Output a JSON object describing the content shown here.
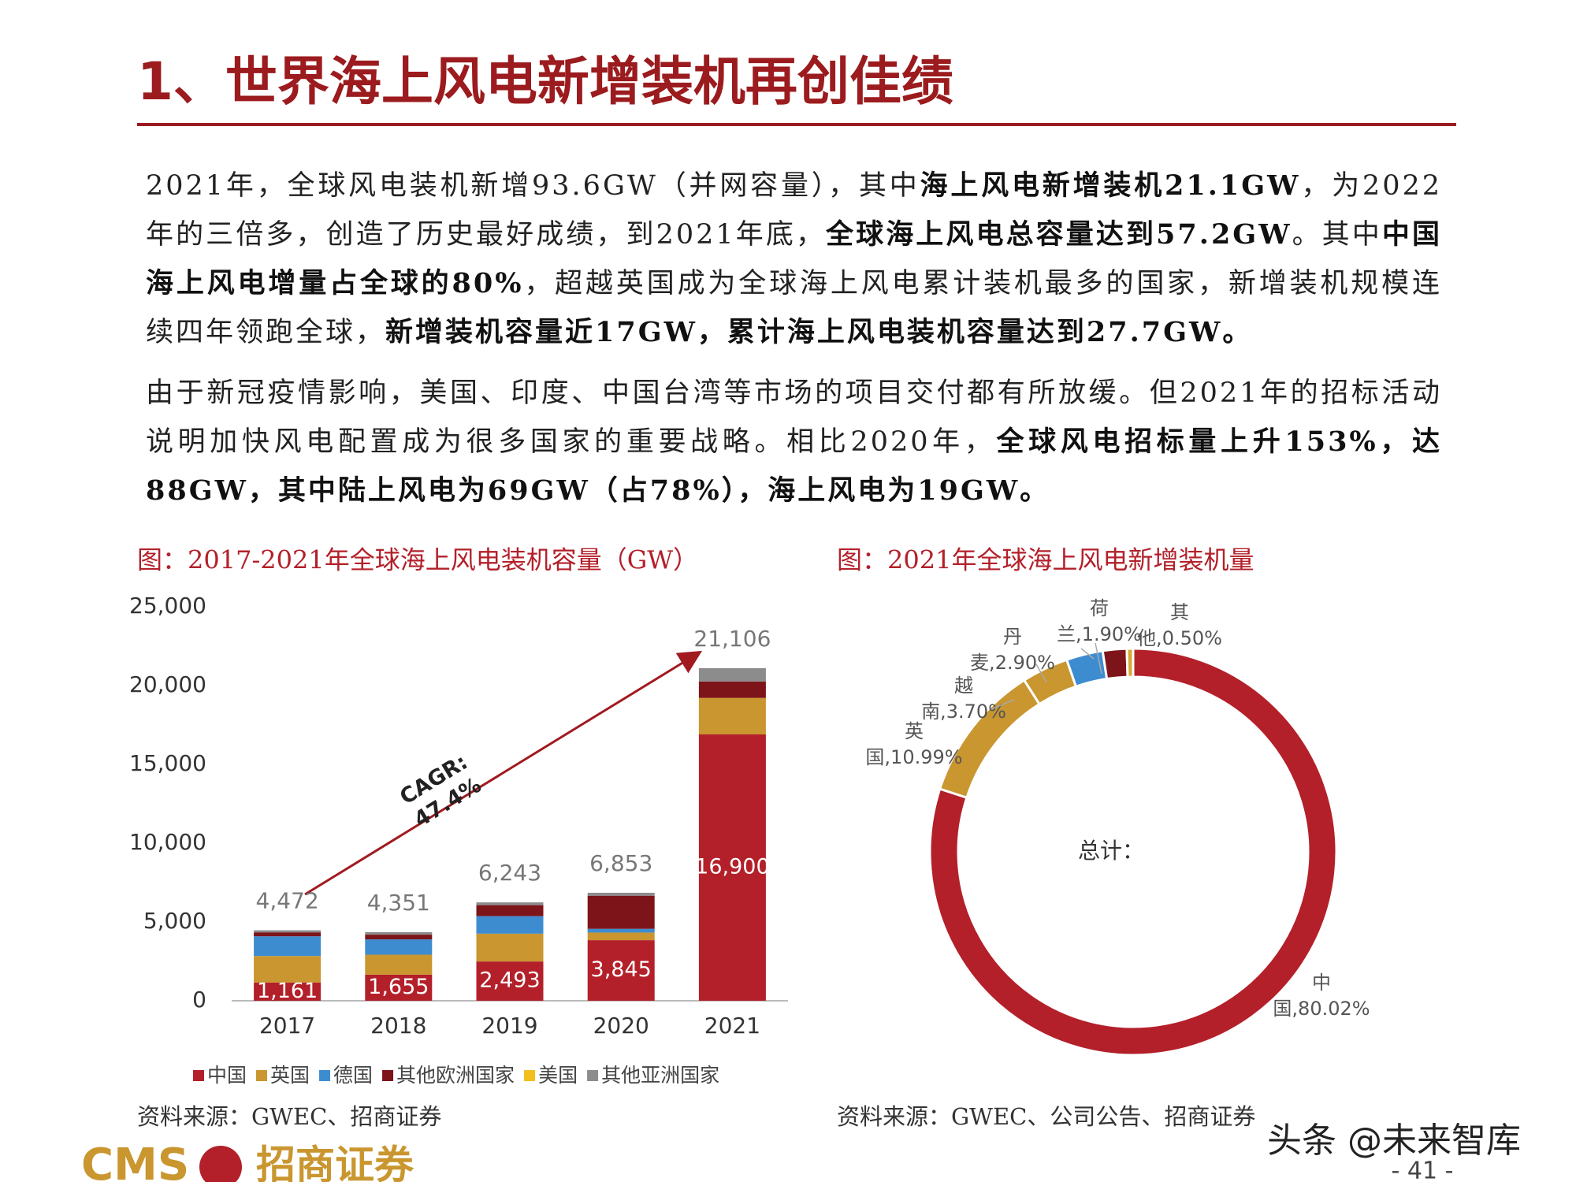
{
  "header": {
    "title": "1、世界海上风电新增装机再创佳绩"
  },
  "paragraphs": [
    [
      {
        "text": "2021年，全球风电装机新增93.6GW（并网容量），其中",
        "bold": false
      },
      {
        "text": "海上风电新增装机21.1GW",
        "bold": true
      },
      {
        "text": "，为2022年的三倍多，创造了历史最好成绩，到2021年底，",
        "bold": false
      },
      {
        "text": "全球海上风电总容量达到57.2GW",
        "bold": true
      },
      {
        "text": "。其中",
        "bold": false
      },
      {
        "text": "中国海上风电增量占全球的80%",
        "bold": true
      },
      {
        "text": "，超越英国成为全球海上风电累计装机最多的国家，新增装机规模连续四年领跑全球，",
        "bold": false
      },
      {
        "text": "新增装机容量近17GW，累计海上风电装机容量达到27.7GW。",
        "bold": true
      }
    ],
    [
      {
        "text": "由于新冠疫情影响，美国、印度、中国台湾等市场的项目交付都有所放缓。但2021年的招标活动说明加快风电配置成为很多国家的重要战略。相比2020年，",
        "bold": false
      },
      {
        "text": "全球风电招标量上升153%，达88GW，其中陆上风电为69GW（占78%），海上风电为19GW。",
        "bold": true
      }
    ]
  ],
  "chart_data": [
    {
      "type": "bar",
      "stacked": true,
      "title": "图：2017-2021年全球海上风电装机容量（GW）",
      "categories": [
        "2017",
        "2018",
        "2019",
        "2020",
        "2021"
      ],
      "series": [
        {
          "name": "中国",
          "color": "#b3202a",
          "values": [
            1161,
            1655,
            2493,
            3845,
            16900
          ],
          "value_labels": [
            "1,161",
            "1,655",
            "2,493",
            "3,845",
            "16,900"
          ]
        },
        {
          "name": "英国",
          "color": "#c9962f",
          "values": [
            1680,
            1270,
            1764,
            483,
            2317
          ]
        },
        {
          "name": "德国",
          "color": "#3d8cd0",
          "values": [
            1250,
            970,
            1111,
            237,
            0
          ]
        },
        {
          "name": "其他欧洲国家",
          "color": "#7d1419",
          "values": [
            250,
            300,
            700,
            2100,
            1039
          ]
        },
        {
          "name": "美国",
          "color": "#f2c01c",
          "values": [
            0,
            0,
            0,
            0,
            0
          ]
        },
        {
          "name": "其他亚洲国家",
          "color": "#8c8c8c",
          "values": [
            131,
            156,
            175,
            188,
            850
          ]
        }
      ],
      "totals": [
        4472,
        4351,
        6243,
        6853,
        21106
      ],
      "total_labels": [
        "4,472",
        "4,351",
        "6,243",
        "6,853",
        "21,106"
      ],
      "ylim": [
        0,
        25000
      ],
      "yticks": [
        0,
        {
          "value": 5000,
          "label": "5,000"
        },
        {
          "value": 10000,
          "label": "10,000"
        },
        {
          "value": 15000,
          "label": "15,000"
        },
        {
          "value": 20000,
          "label": "20,000"
        },
        {
          "value": 25000,
          "label": "25,000"
        }
      ],
      "annotation": [
        "CAGR:",
        "47.4%"
      ],
      "legend": "bottom",
      "source": "资料来源：GWEC、招商证券"
    },
    {
      "type": "donut",
      "title": "图：2021年全球海上风电新增装机量",
      "categories": [
        "中国",
        "英国",
        "越南",
        "丹麦",
        "荷兰",
        "其他"
      ],
      "values": [
        80.02,
        10.99,
        3.7,
        2.9,
        1.9,
        0.5
      ],
      "value_labels": [
        "中国,80.02%",
        "英国,10.99%",
        "越南,3.70%",
        "丹麦,2.90%",
        "荷兰,1.90%",
        "其他,0.50%"
      ],
      "colors": [
        "#b3202a",
        "#c9962f",
        "#c9962f",
        "#3d8cd0",
        "#7d1419",
        "#d8a838"
      ],
      "center_label": "总计：",
      "source": "资料来源：GWEC、公司公告、招商证券"
    }
  ],
  "footer": {
    "logo_latin": "CMS",
    "logo_name": "招商证券",
    "watermark": "头条 @未来智库",
    "page_number": "- 41 -"
  }
}
